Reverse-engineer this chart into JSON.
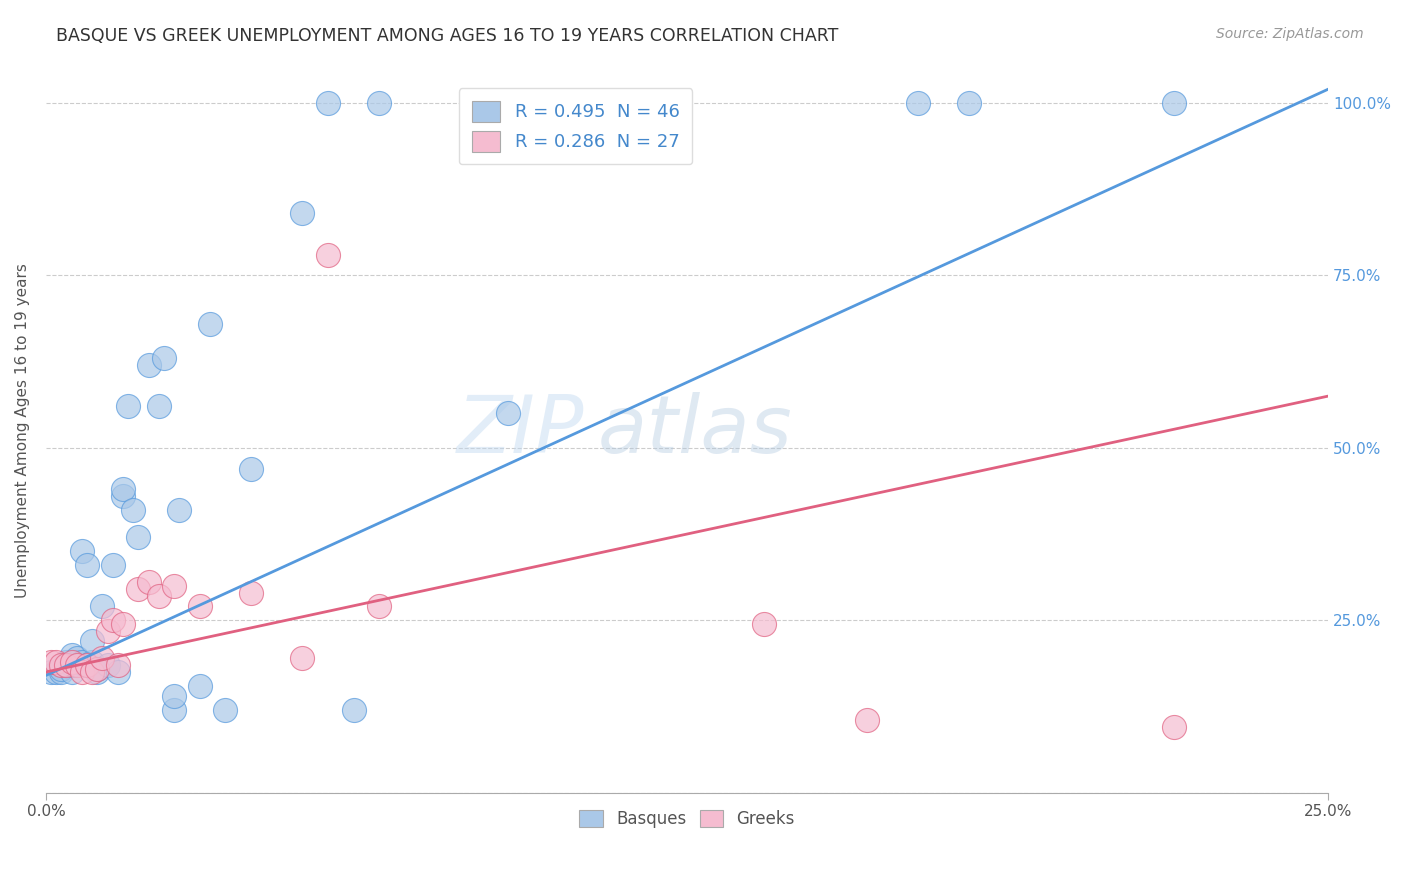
{
  "title": "BASQUE VS GREEK UNEMPLOYMENT AMONG AGES 16 TO 19 YEARS CORRELATION CHART",
  "source": "Source: ZipAtlas.com",
  "ylabel": "Unemployment Among Ages 16 to 19 years",
  "legend_basque": "R = 0.495  N = 46",
  "legend_greek": "R = 0.286  N = 27",
  "legend_label1": "Basques",
  "legend_label2": "Greeks",
  "basque_color": "#aac8e8",
  "greek_color": "#f5bcd0",
  "basque_line_color": "#5599dd",
  "greek_line_color": "#e06080",
  "basque_scatter_x": [
    0.001,
    0.002,
    0.003,
    0.003,
    0.004,
    0.004,
    0.005,
    0.005,
    0.005,
    0.006,
    0.006,
    0.007,
    0.007,
    0.008,
    0.008,
    0.009,
    0.009,
    0.01,
    0.01,
    0.011,
    0.012,
    0.013,
    0.014,
    0.015,
    0.015,
    0.016,
    0.017,
    0.018,
    0.02,
    0.022,
    0.023,
    0.025,
    0.025,
    0.026,
    0.03,
    0.032,
    0.035,
    0.04,
    0.05,
    0.055,
    0.06,
    0.065,
    0.09,
    0.17,
    0.18,
    0.22
  ],
  "basque_scatter_y": [
    0.175,
    0.175,
    0.175,
    0.18,
    0.185,
    0.19,
    0.175,
    0.2,
    0.185,
    0.19,
    0.195,
    0.19,
    0.35,
    0.185,
    0.33,
    0.19,
    0.22,
    0.175,
    0.18,
    0.27,
    0.185,
    0.33,
    0.175,
    0.43,
    0.44,
    0.56,
    0.41,
    0.37,
    0.62,
    0.56,
    0.63,
    0.12,
    0.14,
    0.41,
    0.155,
    0.68,
    0.12,
    0.47,
    0.84,
    1.0,
    0.12,
    1.0,
    0.55,
    1.0,
    1.0,
    1.0
  ],
  "greek_scatter_x": [
    0.001,
    0.002,
    0.003,
    0.004,
    0.005,
    0.006,
    0.007,
    0.008,
    0.009,
    0.01,
    0.011,
    0.012,
    0.013,
    0.014,
    0.015,
    0.018,
    0.02,
    0.022,
    0.025,
    0.03,
    0.04,
    0.05,
    0.055,
    0.065,
    0.14,
    0.16,
    0.22
  ],
  "greek_scatter_y": [
    0.19,
    0.19,
    0.185,
    0.185,
    0.19,
    0.185,
    0.175,
    0.185,
    0.175,
    0.18,
    0.195,
    0.235,
    0.25,
    0.185,
    0.245,
    0.295,
    0.305,
    0.285,
    0.3,
    0.27,
    0.29,
    0.195,
    0.78,
    0.27,
    0.245,
    0.105,
    0.095
  ],
  "xlim": [
    0.0,
    0.25
  ],
  "ylim": [
    0.0,
    1.05
  ],
  "basque_line_x": [
    0.0,
    0.25
  ],
  "basque_line_y": [
    0.17,
    1.02
  ],
  "greek_line_x": [
    0.0,
    0.25
  ],
  "greek_line_y": [
    0.175,
    0.575
  ],
  "ytick_vals": [
    0.0,
    0.25,
    0.5,
    0.75,
    1.0
  ],
  "ytick_labels_right": [
    "",
    "25.0%",
    "50.0%",
    "75.0%",
    "100.0%"
  ],
  "xtick_vals": [
    0.0,
    0.25
  ],
  "xtick_labels": [
    "0.0%",
    "25.0%"
  ]
}
